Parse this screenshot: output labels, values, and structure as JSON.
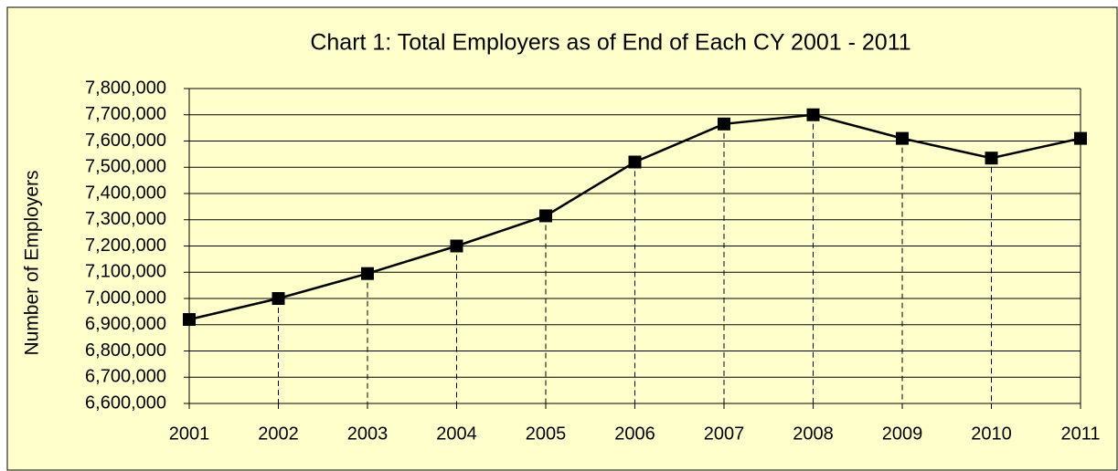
{
  "chart_data": {
    "type": "line",
    "title": "Chart 1: Total Employers as of End of Each CY 2001 - 2011",
    "y_label": "Number of Employers",
    "categories": [
      "2001",
      "2002",
      "2003",
      "2004",
      "2005",
      "2006",
      "2007",
      "2008",
      "2009",
      "2010",
      "2011"
    ],
    "series": [
      {
        "name": "Total Employers",
        "color": "#000000",
        "values": [
          6920000,
          7000000,
          7095000,
          7200000,
          7315000,
          7520000,
          7665000,
          7700000,
          7610000,
          7535000,
          7610000
        ]
      }
    ],
    "ylim": [
      6600000,
      7800000
    ],
    "yticks": [
      {
        "value": 6600000,
        "label": "6,600,000"
      },
      {
        "value": 6700000,
        "label": "6,700,000"
      },
      {
        "value": 6800000,
        "label": "6,800,000"
      },
      {
        "value": 6900000,
        "label": "6,900,000"
      },
      {
        "value": 7000000,
        "label": "7,000,000"
      },
      {
        "value": 7100000,
        "label": "7,100,000"
      },
      {
        "value": 7200000,
        "label": "7,200,000"
      },
      {
        "value": 7300000,
        "label": "7,300,000"
      },
      {
        "value": 7400000,
        "label": "7,400,000"
      },
      {
        "value": 7500000,
        "label": "7,500,000"
      },
      {
        "value": 7600000,
        "label": "7,600,000"
      },
      {
        "value": 7700000,
        "label": "7,700,000"
      },
      {
        "value": 7800000,
        "label": "7,800,000"
      }
    ],
    "grid": true,
    "drop_lines": true
  }
}
